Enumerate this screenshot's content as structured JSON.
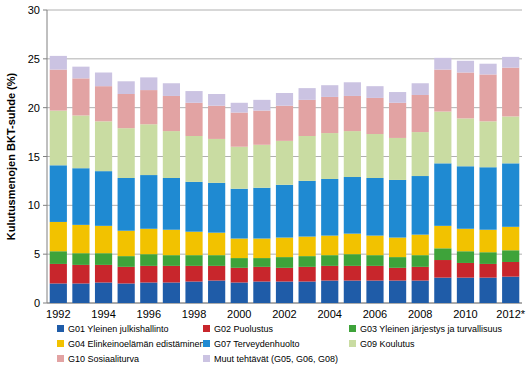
{
  "chart_data": {
    "type": "bar",
    "stacked": true,
    "grid": true,
    "legend": "bottom",
    "y_label": "Kulutusmenojen BKT-suhde (%)",
    "categories": [
      "1992",
      null,
      "1994",
      null,
      "1996",
      null,
      "1998",
      null,
      "2000",
      null,
      "2002",
      null,
      "2004",
      null,
      "2006",
      null,
      "2008",
      null,
      "2010",
      null,
      "2012*"
    ],
    "ylim": [
      0,
      30
    ],
    "yticks": [
      0,
      5,
      10,
      15,
      20,
      25,
      30
    ],
    "series": [
      {
        "name": "G01 Yleinen julkishallinto",
        "color": "#1f5ca8",
        "values": [
          2.0,
          2.0,
          2.1,
          2.0,
          2.1,
          2.1,
          2.2,
          2.3,
          2.1,
          2.2,
          2.2,
          2.2,
          2.3,
          2.3,
          2.3,
          2.3,
          2.3,
          2.6,
          2.6,
          2.6,
          2.7
        ]
      },
      {
        "name": "G02 Puolustus",
        "color": "#c8262c",
        "values": [
          2.0,
          1.9,
          1.8,
          1.7,
          1.7,
          1.7,
          1.6,
          1.5,
          1.5,
          1.5,
          1.4,
          1.5,
          1.5,
          1.5,
          1.5,
          1.3,
          1.4,
          1.8,
          1.5,
          1.4,
          1.5
        ]
      },
      {
        "name": "G03 Yleinen järjestys ja turvallisuus",
        "color": "#3ea33a",
        "values": [
          1.3,
          1.2,
          1.2,
          1.1,
          1.2,
          1.1,
          1.1,
          1.1,
          1.0,
          0.9,
          1.1,
          1.1,
          1.1,
          1.2,
          1.1,
          1.1,
          1.2,
          1.2,
          1.2,
          1.2,
          1.2
        ]
      },
      {
        "name": "G04 Elinkeinoelämän edistäminen",
        "color": "#f2c200",
        "values": [
          3.0,
          2.9,
          2.8,
          2.6,
          2.6,
          2.6,
          2.4,
          2.3,
          2.0,
          2.0,
          2.0,
          2.0,
          2.0,
          2.1,
          2.0,
          2.0,
          2.1,
          2.3,
          2.3,
          2.3,
          2.4
        ]
      },
      {
        "name": "G07 Terveydenhuolto",
        "color": "#1f8ad2",
        "values": [
          5.8,
          5.8,
          5.6,
          5.4,
          5.5,
          5.3,
          5.1,
          5.1,
          5.1,
          5.2,
          5.4,
          5.7,
          5.8,
          5.8,
          5.9,
          5.9,
          6.0,
          6.4,
          6.4,
          6.4,
          6.5
        ]
      },
      {
        "name": "G09 Koulutus",
        "color": "#c9dca2",
        "values": [
          5.6,
          5.4,
          5.1,
          5.1,
          5.2,
          4.8,
          4.7,
          4.5,
          4.3,
          4.4,
          4.5,
          4.6,
          4.7,
          4.7,
          4.5,
          4.3,
          4.5,
          5.3,
          4.9,
          4.7,
          4.8
        ]
      },
      {
        "name": "G10 Sosiaaliturva",
        "color": "#e2a3a3",
        "values": [
          4.2,
          3.8,
          3.6,
          3.5,
          3.5,
          3.6,
          3.4,
          3.4,
          3.5,
          3.5,
          3.6,
          3.7,
          3.7,
          3.6,
          3.7,
          3.6,
          3.8,
          4.3,
          4.7,
          4.8,
          5.0
        ]
      },
      {
        "name": "Muut tehtävät (G05, G06, G08)",
        "color": "#cbc3e2",
        "values": [
          1.4,
          1.2,
          1.4,
          1.3,
          1.3,
          1.3,
          1.2,
          1.2,
          1.0,
          1.1,
          1.3,
          1.2,
          1.2,
          1.4,
          1.2,
          1.1,
          1.2,
          1.2,
          1.2,
          1.1,
          1.1
        ]
      }
    ]
  }
}
